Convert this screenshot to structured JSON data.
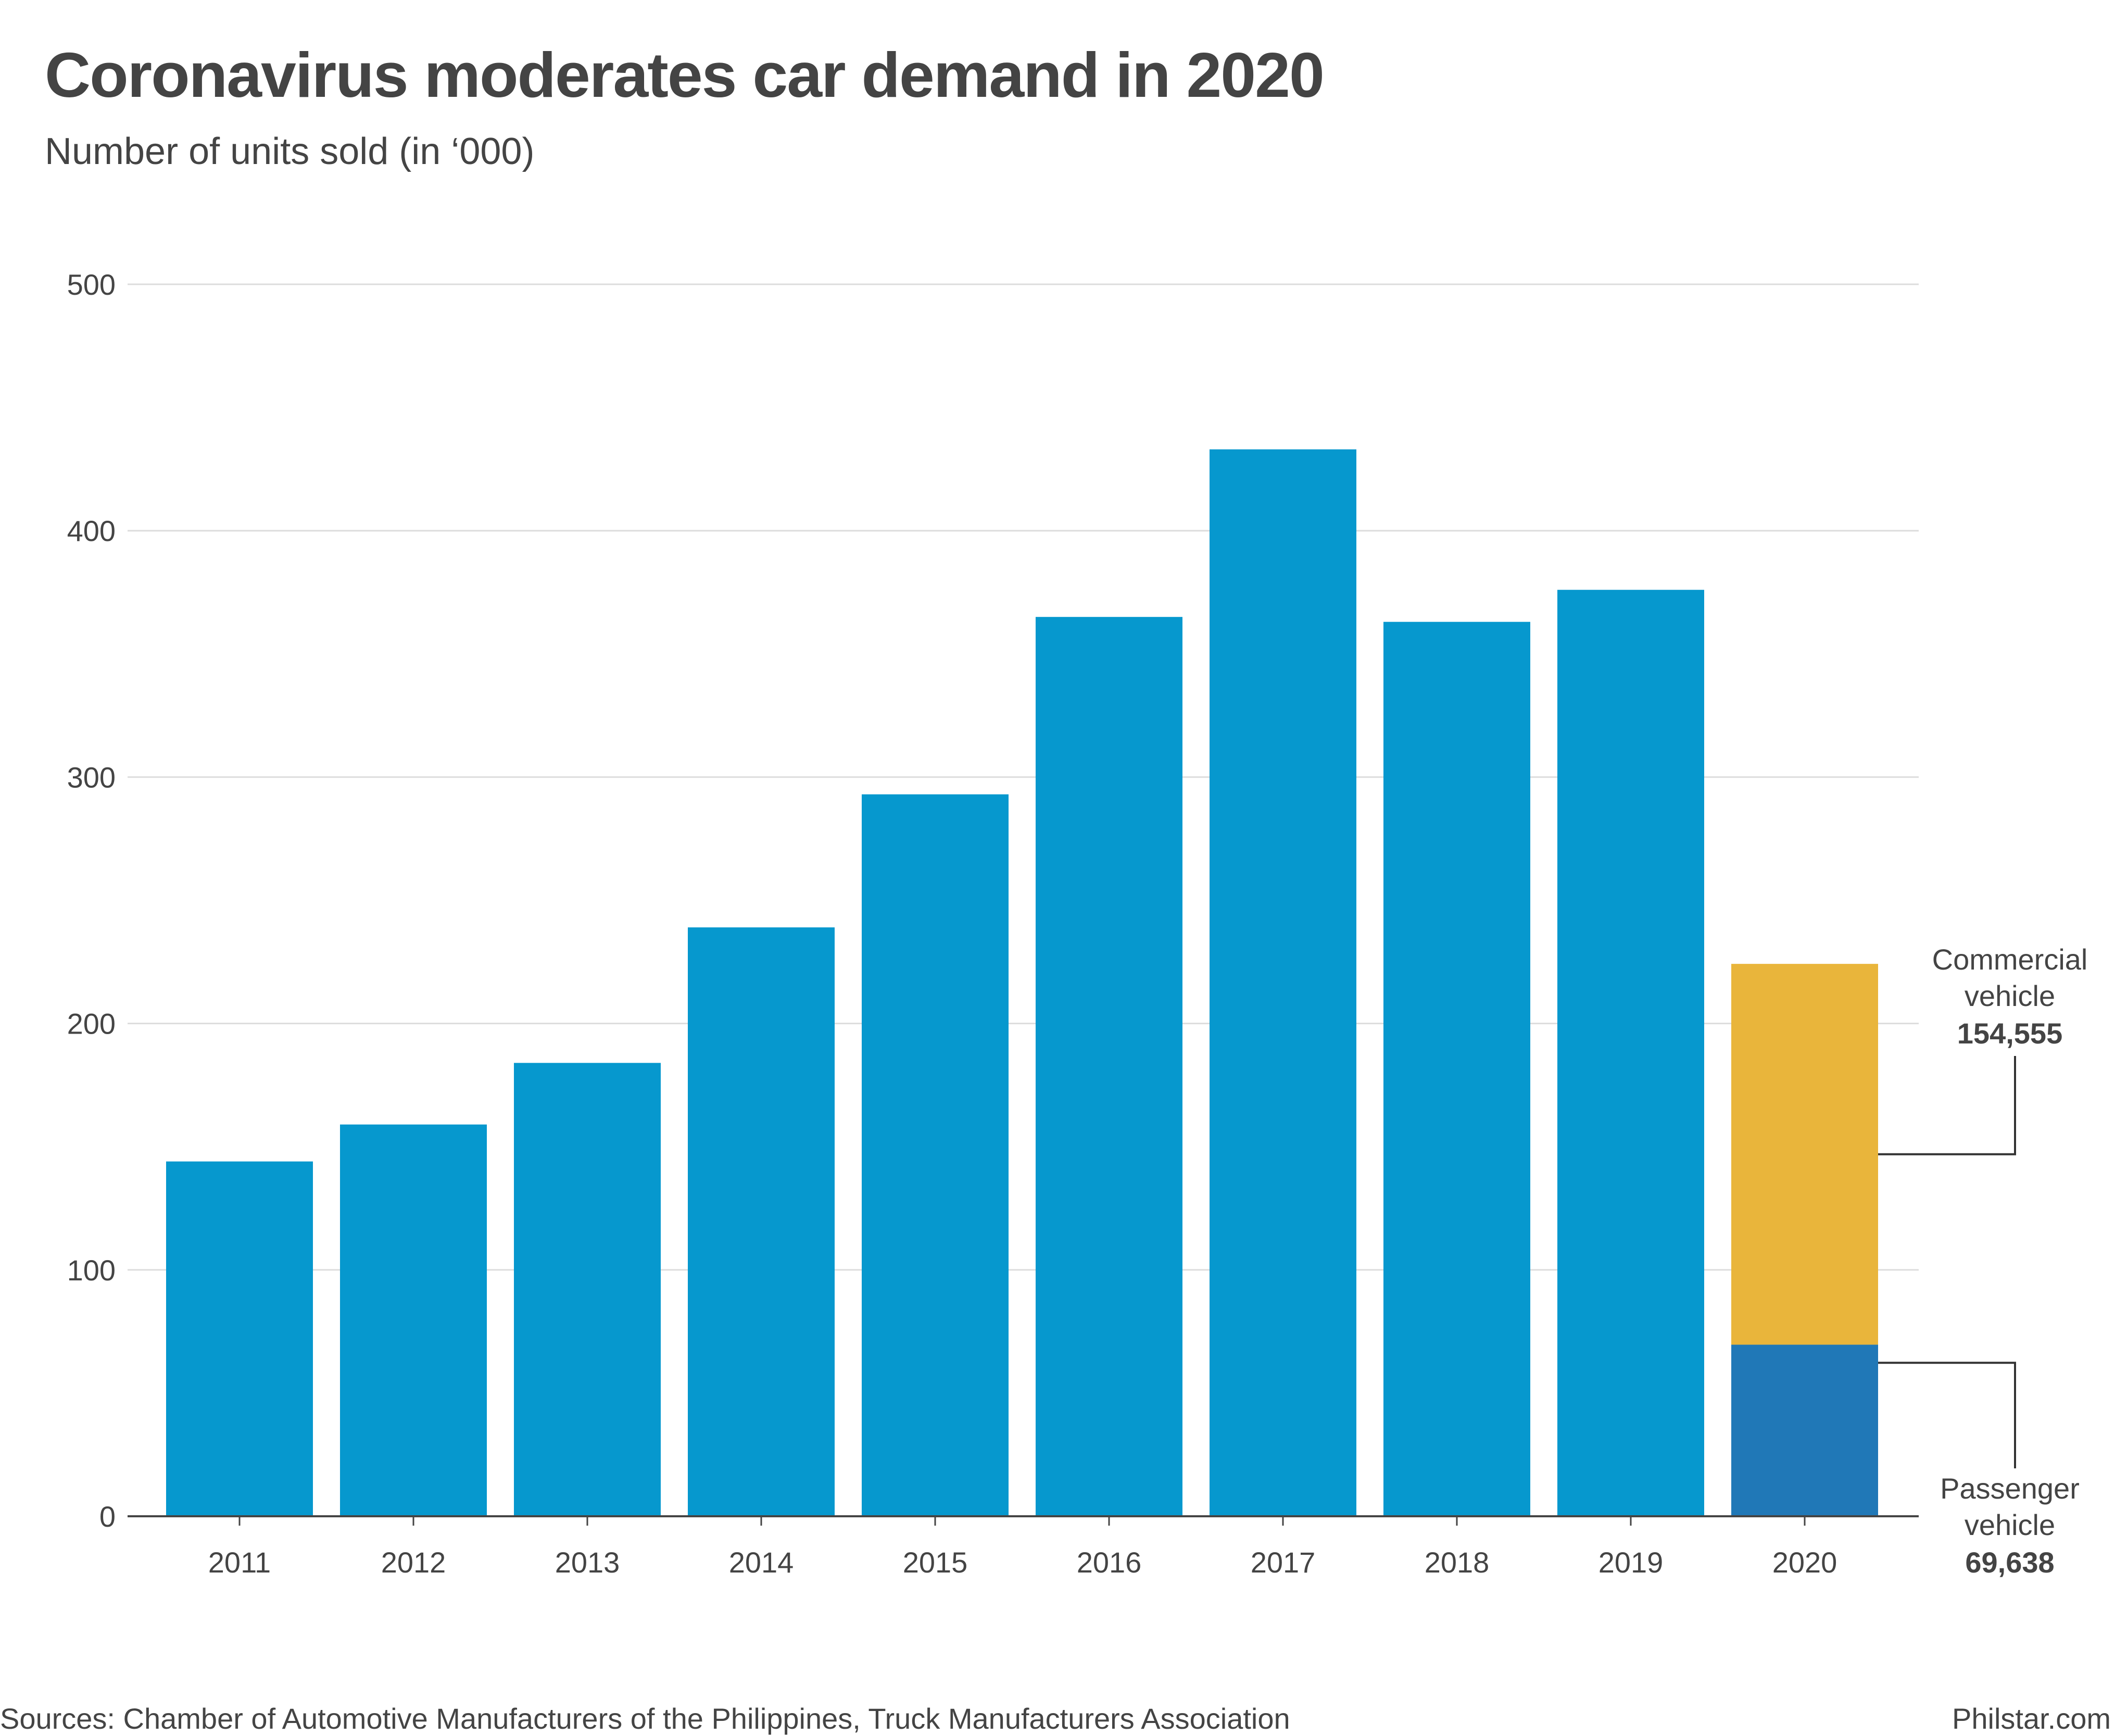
{
  "title": "Coronavirus moderates car demand in 2020",
  "subtitle": "Number of units sold (in ‘000)",
  "footer": {
    "sources": "Sources: Chamber of Automotive Manufacturers of the Philippines, Truck Manufacturers Association",
    "credit": "Philstar.com"
  },
  "chart_data": {
    "type": "bar",
    "stacked": true,
    "title": "Coronavirus moderates car demand in 2020",
    "subtitle": "Number of units sold (in ‘000)",
    "xlabel": "",
    "ylabel": "",
    "ylim": [
      0,
      500
    ],
    "yticks": [
      0,
      100,
      200,
      300,
      400,
      500
    ],
    "grid": true,
    "categories": [
      "2011",
      "2012",
      "2013",
      "2014",
      "2015",
      "2016",
      "2017",
      "2018",
      "2019",
      "2020"
    ],
    "series": [
      {
        "values": [
          144,
          159,
          184,
          239,
          293,
          365,
          433,
          363,
          376,
          null
        ],
        "color": "#0698ce"
      },
      {
        "name": "Passenger vehicle",
        "values": [
          null,
          null,
          null,
          null,
          null,
          null,
          null,
          null,
          null,
          69.638
        ],
        "color": "#2078b7"
      },
      {
        "name": "Commercial vehicle",
        "values": [
          null,
          null,
          null,
          null,
          null,
          null,
          null,
          null,
          null,
          154.555
        ],
        "color": "#e9b53b"
      }
    ],
    "annotations": [
      {
        "label_line1": "Commercial",
        "label_line2": "vehicle",
        "value_text": "154,555",
        "series": "Commercial vehicle"
      },
      {
        "label_line1": "Passenger",
        "label_line2": "vehicle",
        "value_text": "69,638",
        "series": "Passenger vehicle"
      }
    ],
    "colors": {
      "grid": "#dddddd",
      "axis": "#444444",
      "text": "#444444",
      "leader": "#333333"
    }
  }
}
